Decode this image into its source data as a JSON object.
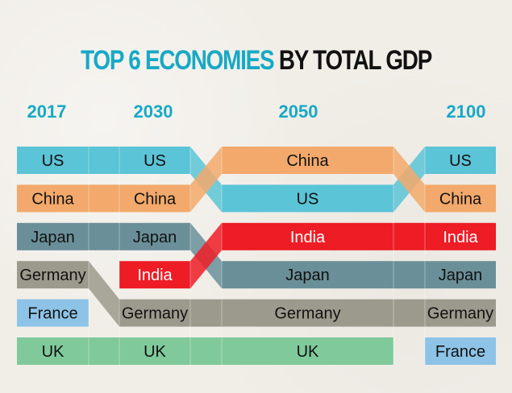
{
  "chart_data": {
    "type": "table",
    "title_highlight": "TOP 6 ECONOMIES",
    "title_rest": "BY TOTAL GDP",
    "years": [
      "2017",
      "2030",
      "2050",
      "2100"
    ],
    "rankings": {
      "2017": [
        "US",
        "China",
        "Japan",
        "Germany",
        "France",
        "UK"
      ],
      "2030": [
        "US",
        "China",
        "Japan",
        "India",
        "Germany",
        "UK"
      ],
      "2050": [
        "China",
        "US",
        "India",
        "Japan",
        "Germany",
        "UK"
      ],
      "2100": [
        "US",
        "China",
        "India",
        "Japan",
        "Germany",
        "France"
      ]
    },
    "colors": {
      "US": "#5bc4d6",
      "China": "#f2a96b",
      "Japan": "#6a8f99",
      "Germany": "#9c9a8c",
      "France": "#8dc3e6",
      "UK": "#7fc99a",
      "India": "#ee1c25"
    },
    "label_colors": {
      "India": "#ffffff"
    }
  }
}
